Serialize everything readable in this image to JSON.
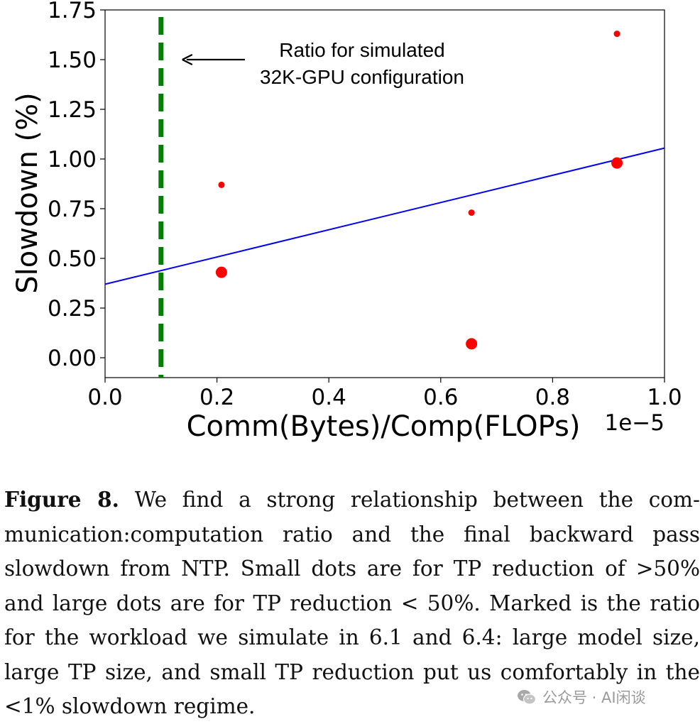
{
  "chart_data": {
    "type": "scatter",
    "xlabel": "Comm(Bytes)/Comp(FLOPs)",
    "x_multiplier": "1e−5",
    "ylabel": "Slowdown (%)",
    "xlim": [
      0.0,
      1.0
    ],
    "ylim": [
      -0.1,
      1.75
    ],
    "x_ticks": [
      "0.0",
      "0.2",
      "0.4",
      "0.6",
      "0.8",
      "1.0"
    ],
    "y_ticks": [
      "0.00",
      "0.25",
      "0.50",
      "0.75",
      "1.00",
      "1.25",
      "1.50",
      "1.75"
    ],
    "grid": false,
    "series": [
      {
        "marker": "small",
        "color": "#ff0000",
        "points": [
          {
            "x": 0.208,
            "y": 0.87
          },
          {
            "x": 0.655,
            "y": 0.73
          },
          {
            "x": 0.915,
            "y": 1.63
          }
        ]
      },
      {
        "marker": "large",
        "color": "#ff0000",
        "points": [
          {
            "x": 0.208,
            "y": 0.43
          },
          {
            "x": 0.655,
            "y": 0.07
          },
          {
            "x": 0.915,
            "y": 0.98
          }
        ]
      }
    ],
    "fit_line": {
      "color": "#0000ff",
      "intercept": 0.37,
      "slope": 0.685
    },
    "vertical_line": {
      "x": 0.1,
      "color": "#008000",
      "style": "dashed"
    },
    "annotation": {
      "lines": [
        "Ratio for simulated",
        "32K-GPU configuration"
      ],
      "arrow_to_x": 0.1,
      "arrow_at_y": 1.5
    }
  },
  "caption": {
    "label": "Figure 8.",
    "text": "We find a strong relationship between the com­munication:computation ratio and the final backward pass slowdown from NTP. Small dots are for TP reduction of >50% and large dots are for TP reduction < 50%. Marked is the ratio for the workload we simulate in 6.1 and 6.4: large model size, large TP size, and small TP reduction put us comfortably in the <1% slowdown regime."
  },
  "watermark": {
    "text": "公众号 · AI闲谈",
    "icon": "wechat-icon"
  }
}
